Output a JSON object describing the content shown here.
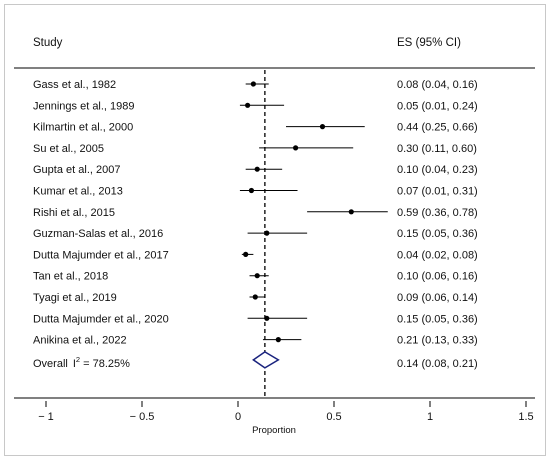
{
  "chart_data": {
    "type": "forest",
    "header": {
      "study": "Study",
      "es": "ES (95% CI)"
    },
    "xlabel": "Proportion",
    "xlim": [
      -1.1,
      1.5
    ],
    "xticks": [
      {
        "value": -1,
        "label": "− 1"
      },
      {
        "value": -0.5,
        "label": "− 0.5"
      },
      {
        "value": 0,
        "label": "0"
      },
      {
        "value": 0.5,
        "label": "0.5"
      },
      {
        "value": 1,
        "label": "1"
      },
      {
        "value": 1.5,
        "label": "1.5"
      }
    ],
    "reference_line": 0.14,
    "studies": [
      {
        "name": "Gass et al., 1982",
        "es": 0.08,
        "lo": 0.04,
        "hi": 0.16,
        "text": "0.08 (0.04, 0.16)"
      },
      {
        "name": "Jennings et al., 1989",
        "es": 0.05,
        "lo": 0.01,
        "hi": 0.24,
        "text": "0.05 (0.01, 0.24)"
      },
      {
        "name": "Kilmartin et al., 2000",
        "es": 0.44,
        "lo": 0.25,
        "hi": 0.66,
        "text": "0.44 (0.25, 0.66)"
      },
      {
        "name": "Su et al., 2005",
        "es": 0.3,
        "lo": 0.11,
        "hi": 0.6,
        "text": "0.30 (0.11, 0.60)"
      },
      {
        "name": "Gupta et al., 2007",
        "es": 0.1,
        "lo": 0.04,
        "hi": 0.23,
        "text": "0.10 (0.04, 0.23)"
      },
      {
        "name": "Kumar et al., 2013",
        "es": 0.07,
        "lo": 0.01,
        "hi": 0.31,
        "text": "0.07 (0.01, 0.31)"
      },
      {
        "name": "Rishi et al., 2015",
        "es": 0.59,
        "lo": 0.36,
        "hi": 0.78,
        "text": "0.59 (0.36, 0.78)"
      },
      {
        "name": "Guzman-Salas et al., 2016",
        "es": 0.15,
        "lo": 0.05,
        "hi": 0.36,
        "text": "0.15 (0.05, 0.36)"
      },
      {
        "name": "Dutta Majumder et al., 2017",
        "es": 0.04,
        "lo": 0.02,
        "hi": 0.08,
        "text": "0.04 (0.02, 0.08)"
      },
      {
        "name": "Tan et al., 2018",
        "es": 0.1,
        "lo": 0.06,
        "hi": 0.16,
        "text": "0.10 (0.06, 0.16)"
      },
      {
        "name": "Tyagi et al., 2019",
        "es": 0.09,
        "lo": 0.06,
        "hi": 0.14,
        "text": "0.09 (0.06, 0.14)"
      },
      {
        "name": "Dutta Majumder et al., 2020",
        "es": 0.15,
        "lo": 0.05,
        "hi": 0.36,
        "text": "0.15 (0.05, 0.36)"
      },
      {
        "name": "Anikina et al., 2022",
        "es": 0.21,
        "lo": 0.13,
        "hi": 0.33,
        "text": "0.21 (0.13, 0.33)"
      }
    ],
    "overall": {
      "label": "Overall",
      "i2_label": "I",
      "i2_sup": "2",
      "i2_value": " = 78.25%",
      "es": 0.14,
      "lo": 0.08,
      "hi": 0.21,
      "text": "0.14 (0.08, 0.21)"
    },
    "grid": false,
    "colors": {
      "diamond": "#1a237e",
      "point": "#000000",
      "line": "#000000",
      "border": "#c8c8c8"
    }
  }
}
